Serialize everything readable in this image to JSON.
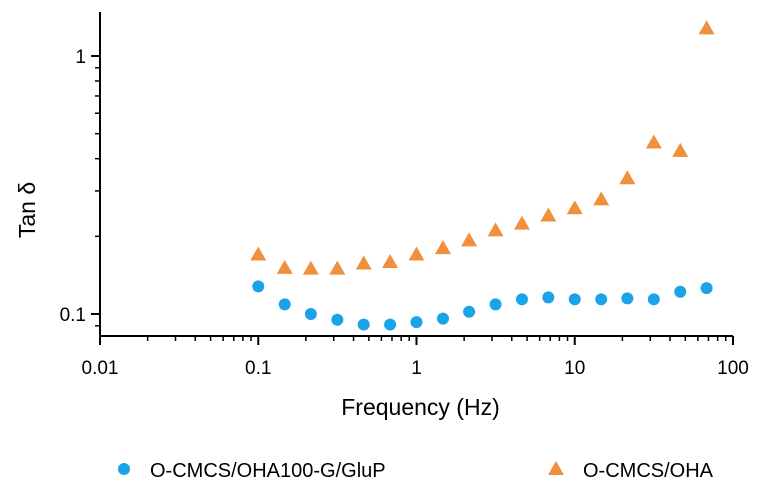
{
  "chart_data": {
    "type": "scatter",
    "title": "",
    "xlabel": "Frequency (Hz)",
    "ylabel": "Tan δ",
    "xscale": "log",
    "yscale": "log",
    "xlim": [
      0.01,
      100
    ],
    "ylim": [
      0.08,
      1.5
    ],
    "grid": false,
    "legend_position": "bottom",
    "x_ticks": [
      {
        "value": 0.01,
        "label": "0.01"
      },
      {
        "value": 0.1,
        "label": "0.1"
      },
      {
        "value": 1,
        "label": "1"
      },
      {
        "value": 10,
        "label": "10"
      },
      {
        "value": 100,
        "label": "100"
      }
    ],
    "y_ticks": [
      {
        "value": 0.1,
        "label": "0.1"
      },
      {
        "value": 1,
        "label": "1"
      }
    ],
    "series": [
      {
        "name": "O-CMCS/OHA100-G/GluP",
        "marker": "circle",
        "color": "#1aa3e8",
        "x": [
          0.1,
          0.147,
          0.215,
          0.316,
          0.464,
          0.681,
          1.0,
          1.47,
          2.15,
          3.16,
          4.64,
          6.81,
          10.0,
          14.7,
          21.5,
          31.6,
          46.4,
          68.1
        ],
        "y": [
          0.128,
          0.109,
          0.1,
          0.095,
          0.091,
          0.091,
          0.093,
          0.096,
          0.102,
          0.109,
          0.114,
          0.116,
          0.114,
          0.114,
          0.115,
          0.114,
          0.122,
          0.126
        ]
      },
      {
        "name": "O-CMCS/OHA",
        "marker": "triangle",
        "color": "#f0903c",
        "x": [
          0.1,
          0.147,
          0.215,
          0.316,
          0.464,
          0.681,
          1.0,
          1.47,
          2.15,
          3.16,
          4.64,
          6.81,
          10.0,
          14.7,
          21.5,
          31.6,
          46.4,
          68.1
        ],
        "y": [
          0.17,
          0.151,
          0.15,
          0.15,
          0.157,
          0.159,
          0.17,
          0.18,
          0.193,
          0.211,
          0.224,
          0.241,
          0.257,
          0.278,
          0.336,
          0.462,
          0.429,
          1.28
        ]
      }
    ]
  }
}
